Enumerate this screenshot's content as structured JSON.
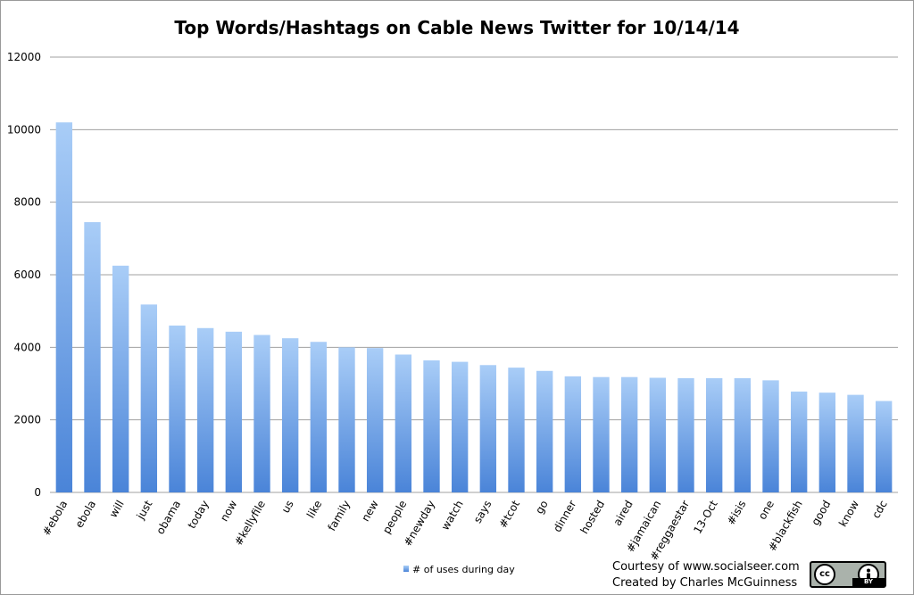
{
  "chart_data": {
    "type": "bar",
    "title": "Top Words/Hashtags on Cable News Twitter for 10/14/14",
    "xlabel": "",
    "ylabel": "",
    "ylim": [
      0,
      12000
    ],
    "yticks": [
      0,
      2000,
      4000,
      6000,
      8000,
      10000,
      12000
    ],
    "grid": true,
    "legend_position": "bottom",
    "categories": [
      "#ebola",
      "ebola",
      "will",
      "just",
      "obama",
      "today",
      "now",
      "#kellyfile",
      "us",
      "like",
      "family",
      "new",
      "people",
      "#newday",
      "watch",
      "says",
      "#tcot",
      "go",
      "dinner",
      "hosted",
      "aired",
      "#jamaican",
      "#reggaestar",
      "13-Oct",
      "#isis",
      "one",
      "#blackfish",
      "good",
      "know",
      "cdc"
    ],
    "series": [
      {
        "name": "# of uses during day",
        "color": "#5b8ed8",
        "values": [
          10200,
          7450,
          6250,
          5180,
          4600,
          4530,
          4430,
          4340,
          4250,
          4150,
          4000,
          3980,
          3800,
          3640,
          3600,
          3510,
          3440,
          3350,
          3200,
          3180,
          3180,
          3160,
          3150,
          3150,
          3150,
          3090,
          2780,
          2750,
          2690,
          2520
        ]
      }
    ]
  },
  "credits": {
    "line1": "Courtesy of www.socialseer.com",
    "line2": "Created by Charles McGuinness"
  },
  "license_badge": {
    "cc_label": "cc",
    "by_label": "BY"
  }
}
